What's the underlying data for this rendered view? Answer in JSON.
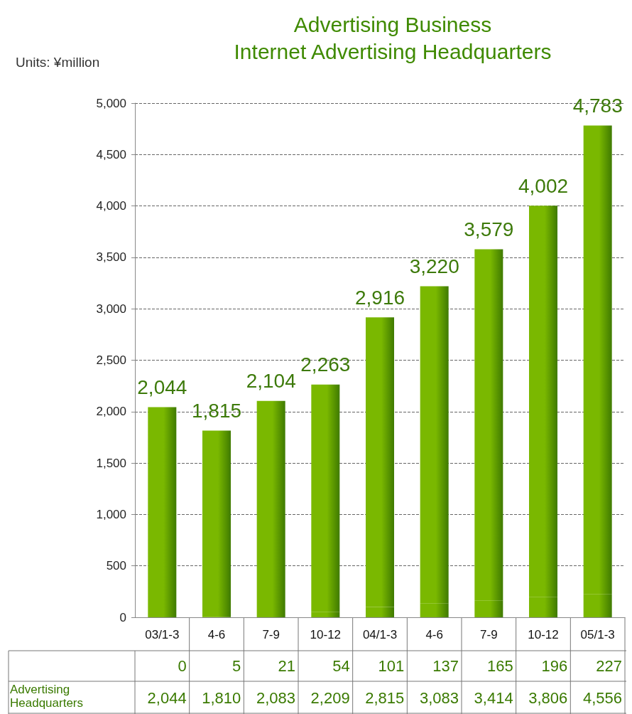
{
  "chart_data": {
    "type": "bar",
    "title": "Advertising Business\nInternet Advertising Headquarters",
    "ylabel": "Units: ¥million",
    "categories": [
      "03/1-3",
      "4-6",
      "7-9",
      "10-12",
      "04/1-3",
      "4-6",
      "7-9",
      "10-12",
      "05/1-3"
    ],
    "stacked": true,
    "series": [
      {
        "color": "#7ab800",
        "values": [
          0,
          5,
          21,
          54,
          101,
          137,
          165,
          196,
          227
        ],
        "value_labels": [
          "0",
          "5",
          "21",
          "54",
          "101",
          "137",
          "165",
          "196",
          "227"
        ]
      },
      {
        "name": "Advertising Headquarters",
        "color": "#7ab800",
        "values": [
          2044,
          1810,
          2083,
          2209,
          2815,
          3083,
          3414,
          3806,
          4556
        ],
        "value_labels": [
          "2,044",
          "1,810",
          "2,083",
          "2,209",
          "2,815",
          "3,083",
          "3,414",
          "3,806",
          "4,556"
        ]
      }
    ],
    "totals": [
      "2,044",
      "1,815",
      "2,104",
      "2,263",
      "2,916",
      "3,220",
      "3,579",
      "4,002",
      "4,783"
    ],
    "ylim": [
      0,
      5000
    ],
    "yticks": [
      0,
      500,
      {
        "value": 1000,
        "label": "1,000"
      },
      {
        "value": 1500,
        "label": "1,500"
      },
      {
        "value": 2000,
        "label": "2,000"
      },
      {
        "value": 2500,
        "label": "2,500"
      },
      {
        "value": 3000,
        "label": "3,000"
      },
      {
        "value": 3500,
        "label": "3,500"
      },
      {
        "value": 4000,
        "label": "4,000"
      },
      {
        "value": 4500,
        "label": "4,500"
      },
      {
        "value": 5000,
        "label": "5,000"
      }
    ],
    "grid": "y",
    "legend": false
  }
}
